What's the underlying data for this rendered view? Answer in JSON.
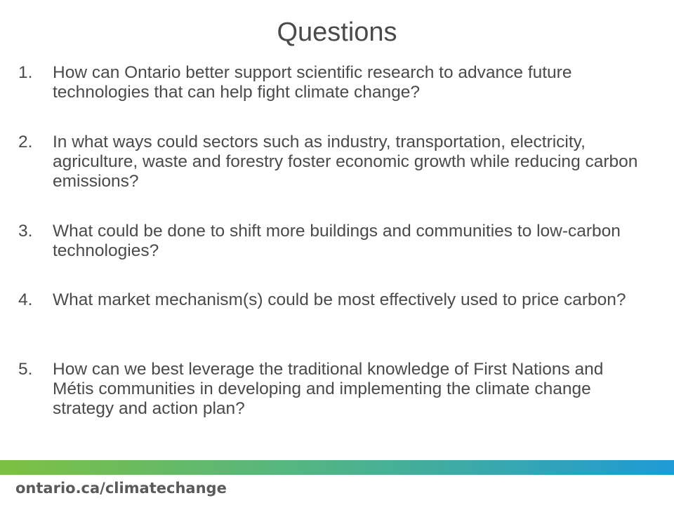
{
  "slide": {
    "title": "Questions",
    "questions": [
      {
        "number": "1.",
        "text": "How can Ontario better support scientific research to advance future technologies that can help fight climate change?"
      },
      {
        "number": "2.",
        "text": "In what ways could sectors such as industry, transportation, electricity, agriculture, waste and forestry foster economic growth while reducing carbon emissions?"
      },
      {
        "number": "3.",
        "text": "What could be done to shift more buildings and communities to low-carbon technologies?"
      },
      {
        "number": "4.",
        "text": "What market mechanism(s) could be most effectively used to price carbon?"
      },
      {
        "number": "5.",
        "text": "How can we best leverage the traditional knowledge of First Nations and Métis communities in developing and implementing the climate change strategy and action plan?"
      }
    ],
    "footer_url": "ontario.ca/climatechange",
    "colors": {
      "text": "#4a4a4a",
      "bar_start": "#7dc142",
      "bar_end": "#1f9ad6"
    }
  }
}
